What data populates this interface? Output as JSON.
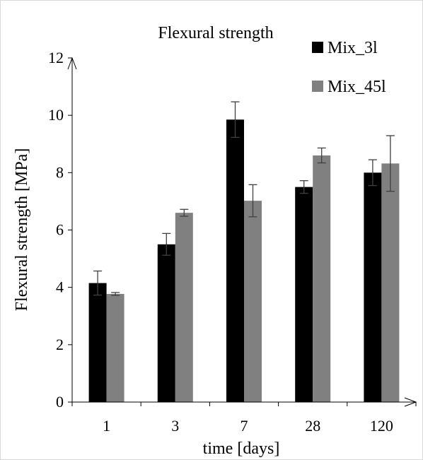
{
  "chart_data": {
    "type": "bar",
    "title": "Flexural strength",
    "xlabel": "time [days]",
    "ylabel": "Flexural strength [MPa]",
    "categories": [
      "1",
      "3",
      "7",
      "28",
      "120"
    ],
    "ylim": [
      0,
      12
    ],
    "yticks": [
      0,
      2,
      4,
      6,
      8,
      10,
      12
    ],
    "grid": false,
    "legend_position": "top-right",
    "series": [
      {
        "name": "Mix_3l",
        "color": "#000000",
        "values": [
          4.15,
          5.5,
          9.85,
          7.5,
          8.0
        ],
        "errors": [
          0.42,
          0.38,
          0.62,
          0.22,
          0.45
        ]
      },
      {
        "name": "Mix_45l",
        "color": "#808080",
        "values": [
          3.77,
          6.6,
          7.02,
          8.6,
          8.32
        ],
        "errors": [
          0.05,
          0.12,
          0.56,
          0.26,
          0.97
        ]
      }
    ]
  }
}
